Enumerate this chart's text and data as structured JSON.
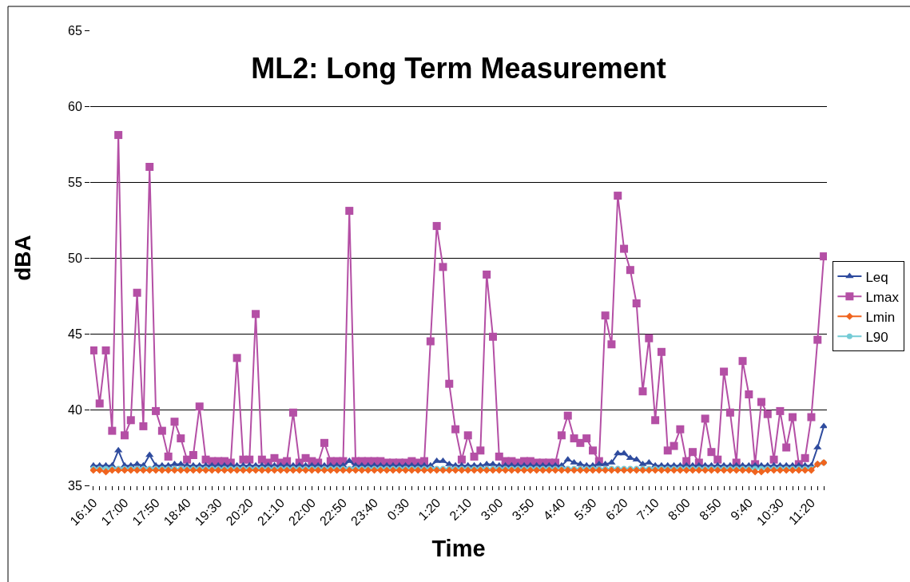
{
  "chart_data": {
    "type": "line",
    "title": "ML2: Long Term Measurement",
    "xlabel": "Time",
    "ylabel": "dBA",
    "categories": [
      "16:10",
      null,
      null,
      null,
      null,
      "17:00",
      null,
      null,
      null,
      null,
      "17:50",
      null,
      null,
      null,
      null,
      "18:40",
      null,
      null,
      null,
      null,
      "19:30",
      null,
      null,
      null,
      null,
      "20:20",
      null,
      null,
      null,
      null,
      "21:10",
      null,
      null,
      null,
      null,
      "22:00",
      null,
      null,
      null,
      null,
      "22:50",
      null,
      null,
      null,
      null,
      "23:40",
      null,
      null,
      null,
      null,
      "0:30",
      null,
      null,
      null,
      null,
      "1:20",
      null,
      null,
      null,
      null,
      "2:10",
      null,
      null,
      null,
      null,
      "3:00",
      null,
      null,
      null,
      null,
      "3:50",
      null,
      null,
      null,
      null,
      "4:40",
      null,
      null,
      null,
      null,
      "5:30",
      null,
      null,
      null,
      null,
      "6:20",
      null,
      null,
      null,
      null,
      "7:10",
      null,
      null,
      null,
      null,
      "8:00",
      null,
      null,
      null,
      null,
      "8:50",
      null,
      null,
      null,
      null,
      "9:40",
      null,
      null,
      null,
      null,
      "10:30",
      null,
      null,
      null,
      null,
      "11:20",
      null,
      null
    ],
    "series": [
      {
        "name": "Leq",
        "color": "#2e4b9e",
        "marker": "triangle",
        "values": [
          36.3,
          36.3,
          36.3,
          36.3,
          37.3,
          36.3,
          36.3,
          36.4,
          36.3,
          37.0,
          36.3,
          36.3,
          36.3,
          36.4,
          36.4,
          36.3,
          36.3,
          36.3,
          36.3,
          36.3,
          36.3,
          36.3,
          36.3,
          36.3,
          36.3,
          36.3,
          36.3,
          36.3,
          36.3,
          36.3,
          36.3,
          36.3,
          36.3,
          36.3,
          36.3,
          36.3,
          36.3,
          36.3,
          36.3,
          36.3,
          36.3,
          36.6,
          36.3,
          36.3,
          36.3,
          36.3,
          36.3,
          36.3,
          36.3,
          36.3,
          36.3,
          36.3,
          36.3,
          36.3,
          36.3,
          36.6,
          36.6,
          36.4,
          36.3,
          36.3,
          36.3,
          36.3,
          36.3,
          36.4,
          36.4,
          36.3,
          36.3,
          36.3,
          36.3,
          36.3,
          36.3,
          36.3,
          36.3,
          36.3,
          36.3,
          36.3,
          36.7,
          36.5,
          36.4,
          36.3,
          36.3,
          36.4,
          36.4,
          36.5,
          37.1,
          37.1,
          36.8,
          36.7,
          36.4,
          36.5,
          36.3,
          36.3,
          36.3,
          36.3,
          36.3,
          36.3,
          36.3,
          36.3,
          36.3,
          36.3,
          36.3,
          36.3,
          36.3,
          36.3,
          36.3,
          36.3,
          36.3,
          36.3,
          36.3,
          36.3,
          36.3,
          36.3,
          36.3,
          36.3,
          36.3,
          36.3,
          37.5,
          38.9
        ]
      },
      {
        "name": "Lmax",
        "color": "#b44fa5",
        "marker": "square",
        "values": [
          43.9,
          40.4,
          43.9,
          38.6,
          58.1,
          38.3,
          39.3,
          47.7,
          38.9,
          56.0,
          39.9,
          38.6,
          36.9,
          39.2,
          38.1,
          36.7,
          37.0,
          40.2,
          36.7,
          36.6,
          36.6,
          36.6,
          36.5,
          43.4,
          36.7,
          36.7,
          46.3,
          36.7,
          36.5,
          36.8,
          36.5,
          36.6,
          39.8,
          36.5,
          36.8,
          36.6,
          36.5,
          37.8,
          36.6,
          36.6,
          36.6,
          53.1,
          36.6,
          36.6,
          36.6,
          36.6,
          36.6,
          36.5,
          36.5,
          36.5,
          36.5,
          36.6,
          36.5,
          36.6,
          44.5,
          52.1,
          49.4,
          41.7,
          38.7,
          36.7,
          38.3,
          36.9,
          37.3,
          48.9,
          44.8,
          36.9,
          36.6,
          36.6,
          36.5,
          36.6,
          36.6,
          36.5,
          36.5,
          36.5,
          36.5,
          38.3,
          39.6,
          38.1,
          37.8,
          38.1,
          37.3,
          36.6,
          46.2,
          44.3,
          54.1,
          50.6,
          49.2,
          47.0,
          41.2,
          44.7,
          39.3,
          43.8,
          37.3,
          37.6,
          38.7,
          36.6,
          37.2,
          36.5,
          39.4,
          37.2,
          36.7,
          42.5,
          39.8,
          36.5,
          43.2,
          41.0,
          36.4,
          40.5,
          39.7,
          36.7,
          39.9,
          37.5,
          39.5,
          36.4,
          36.8,
          39.5,
          44.6,
          50.1
        ]
      },
      {
        "name": "Lmin",
        "color": "#f0641e",
        "marker": "diamond",
        "values": [
          36.0,
          36.0,
          35.9,
          36.0,
          36.0,
          36.0,
          36.0,
          36.0,
          36.0,
          36.0,
          36.0,
          36.0,
          36.0,
          36.0,
          36.0,
          36.0,
          36.0,
          36.0,
          36.0,
          36.0,
          36.0,
          36.0,
          36.0,
          36.0,
          36.0,
          36.0,
          36.0,
          36.0,
          36.0,
          36.0,
          36.0,
          36.0,
          36.0,
          36.0,
          36.0,
          36.0,
          36.0,
          36.0,
          36.0,
          36.0,
          36.0,
          36.0,
          36.0,
          36.0,
          36.0,
          36.0,
          36.0,
          36.0,
          36.0,
          36.0,
          36.0,
          36.0,
          36.0,
          36.0,
          36.0,
          36.0,
          36.0,
          36.0,
          36.0,
          36.0,
          36.0,
          36.0,
          36.0,
          36.0,
          36.0,
          36.0,
          36.0,
          36.0,
          36.0,
          36.0,
          36.0,
          36.0,
          36.0,
          36.0,
          36.0,
          36.0,
          36.0,
          36.0,
          36.0,
          36.0,
          36.0,
          36.0,
          36.0,
          36.0,
          36.0,
          36.0,
          36.0,
          36.0,
          36.0,
          36.0,
          36.0,
          36.0,
          36.0,
          36.0,
          36.0,
          36.0,
          36.0,
          36.0,
          36.0,
          36.0,
          36.0,
          36.0,
          36.0,
          36.0,
          36.0,
          36.0,
          35.9,
          35.9,
          36.0,
          36.0,
          36.0,
          36.0,
          36.0,
          36.0,
          36.0,
          36.0,
          36.4,
          36.5
        ]
      },
      {
        "name": "L90",
        "color": "#73cbd6",
        "marker": "circle",
        "values": [
          36.1,
          36.1,
          36.1,
          36.1,
          36.1,
          36.1,
          36.1,
          36.1,
          36.1,
          36.1,
          36.1,
          36.1,
          36.1,
          36.1,
          36.1,
          36.1,
          36.1,
          36.1,
          36.1,
          36.1,
          36.1,
          36.1,
          36.1,
          36.1,
          36.1,
          36.1,
          36.1,
          36.1,
          36.1,
          36.1,
          36.1,
          36.1,
          36.1,
          36.1,
          36.1,
          36.1,
          36.1,
          36.1,
          36.1,
          36.1,
          36.1,
          36.1,
          36.1,
          36.1,
          36.1,
          36.1,
          36.1,
          36.1,
          36.1,
          36.1,
          36.1,
          36.1,
          36.1,
          36.1,
          36.1,
          36.1,
          36.1,
          36.1,
          36.1,
          36.1,
          36.1,
          36.1,
          36.1,
          36.1,
          36.1,
          36.1,
          36.1,
          36.1,
          36.1,
          36.1,
          36.1,
          36.1,
          36.1,
          36.1,
          36.1,
          36.1,
          36.1,
          36.1,
          36.1,
          36.1,
          36.1,
          36.1,
          36.1,
          36.1,
          36.1,
          36.1,
          36.1,
          36.1,
          36.1,
          36.1,
          36.1,
          36.1,
          36.1,
          36.1,
          36.1,
          36.1,
          36.1,
          36.1,
          36.1,
          36.1,
          36.1,
          36.1,
          36.1,
          36.1,
          36.1,
          36.1,
          36.1,
          36.1,
          36.1,
          36.1,
          36.1,
          36.1,
          36.1,
          36.1,
          36.1,
          36.1,
          36.4,
          36.5
        ]
      }
    ],
    "ylim": [
      35,
      65
    ],
    "yticks": [
      35,
      40,
      45,
      50,
      55,
      60,
      65
    ],
    "grid": "y",
    "legend": "right"
  }
}
